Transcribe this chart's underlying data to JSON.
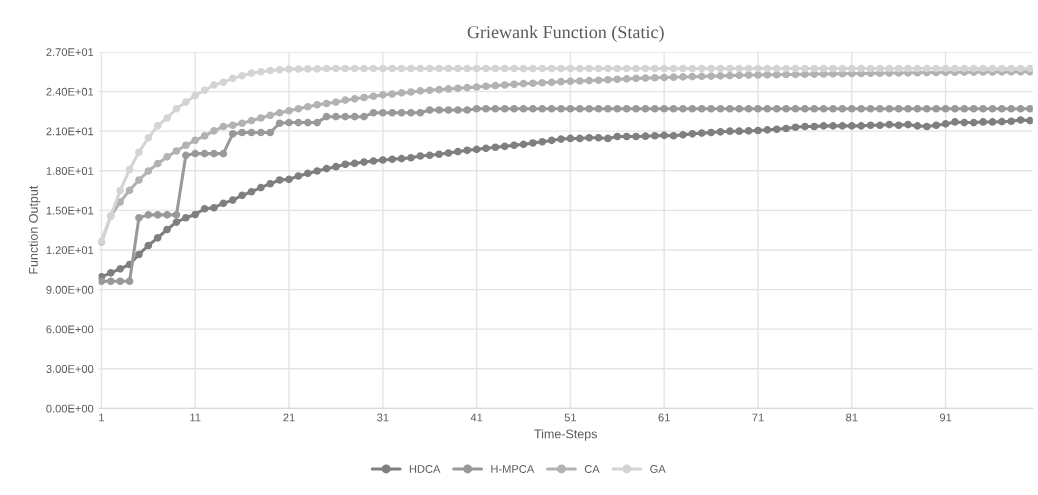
{
  "chart_data": {
    "type": "line",
    "title": "Griewank Function (Static)",
    "xlabel": "Time-Steps",
    "ylabel": "Function Output",
    "categories": [
      "1",
      null,
      null,
      null,
      null,
      null,
      null,
      null,
      null,
      null,
      "11",
      null,
      null,
      null,
      null,
      null,
      null,
      null,
      null,
      null,
      "21",
      null,
      null,
      null,
      null,
      null,
      null,
      null,
      null,
      null,
      "31",
      null,
      null,
      null,
      null,
      null,
      null,
      null,
      null,
      null,
      "41",
      null,
      null,
      null,
      null,
      null,
      null,
      null,
      null,
      null,
      "51",
      null,
      null,
      null,
      null,
      null,
      null,
      null,
      null,
      null,
      "61",
      null,
      null,
      null,
      null,
      null,
      null,
      null,
      null,
      null,
      "71",
      null,
      null,
      null,
      null,
      null,
      null,
      null,
      null,
      null,
      "81",
      null,
      null,
      null,
      null,
      null,
      null,
      null,
      null,
      null,
      "91",
      null,
      null,
      null,
      null,
      null,
      null,
      null,
      null,
      null
    ],
    "ylim": [
      0,
      27
    ],
    "yticks": [
      {
        "value": 0,
        "label": "0.00E+00"
      },
      {
        "value": 3,
        "label": "3.00E+00"
      },
      {
        "value": 6,
        "label": "6.00E+00"
      },
      {
        "value": 9,
        "label": "9.00E+00"
      },
      {
        "value": 12,
        "label": "1.20E+01"
      },
      {
        "value": 15,
        "label": "1.50E+01"
      },
      {
        "value": 18,
        "label": "1.80E+01"
      },
      {
        "value": 21,
        "label": "2.10E+01"
      },
      {
        "value": 24,
        "label": "2.40E+01"
      },
      {
        "value": 27,
        "label": "2.70E+01"
      }
    ],
    "grid": true,
    "legend": "bottom",
    "marker": "circle",
    "line_style": "solid",
    "series": [
      {
        "name": "HDCA",
        "color": "#7f7f7f",
        "values": [
          9.96,
          10.27,
          10.57,
          10.9,
          11.66,
          12.34,
          12.92,
          13.55,
          14.11,
          14.44,
          14.69,
          15.12,
          15.2,
          15.53,
          15.78,
          16.14,
          16.41,
          16.72,
          17.02,
          17.3,
          17.35,
          17.6,
          17.8,
          17.98,
          18.16,
          18.31,
          18.49,
          18.56,
          18.66,
          18.74,
          18.82,
          18.87,
          18.92,
          18.99,
          19.12,
          19.17,
          19.25,
          19.35,
          19.45,
          19.55,
          19.62,
          19.7,
          19.78,
          19.85,
          19.93,
          20.0,
          20.1,
          20.2,
          20.3,
          20.4,
          20.45,
          20.45,
          20.5,
          20.5,
          20.45,
          20.6,
          20.6,
          20.6,
          20.62,
          20.65,
          20.68,
          20.65,
          20.72,
          20.8,
          20.85,
          20.9,
          20.95,
          21.0,
          21.0,
          21.02,
          21.05,
          21.1,
          21.15,
          21.2,
          21.3,
          21.35,
          21.35,
          21.4,
          21.4,
          21.4,
          21.4,
          21.4,
          21.45,
          21.45,
          21.5,
          21.45,
          21.5,
          21.4,
          21.35,
          21.45,
          21.55,
          21.7,
          21.65,
          21.65,
          21.7,
          21.7,
          21.72,
          21.75,
          21.85,
          21.8
        ]
      },
      {
        "name": "H-MPCA",
        "color": "#999999",
        "values": [
          9.63,
          9.63,
          9.63,
          9.63,
          14.44,
          14.66,
          14.66,
          14.66,
          14.66,
          19.17,
          19.3,
          19.3,
          19.3,
          19.3,
          20.8,
          20.9,
          20.9,
          20.9,
          20.9,
          21.6,
          21.65,
          21.65,
          21.65,
          21.65,
          22.1,
          22.1,
          22.1,
          22.1,
          22.1,
          22.4,
          22.4,
          22.4,
          22.4,
          22.4,
          22.4,
          22.6,
          22.6,
          22.6,
          22.6,
          22.6,
          22.7,
          22.7,
          22.7,
          22.7,
          22.7,
          22.7,
          22.7,
          22.7,
          22.7,
          22.7,
          22.7,
          22.7,
          22.7,
          22.7,
          22.7,
          22.7,
          22.7,
          22.7,
          22.7,
          22.7,
          22.7,
          22.7,
          22.7,
          22.7,
          22.7,
          22.7,
          22.7,
          22.7,
          22.7,
          22.7,
          22.7,
          22.7,
          22.7,
          22.7,
          22.7,
          22.7,
          22.7,
          22.7,
          22.7,
          22.7,
          22.7,
          22.7,
          22.7,
          22.7,
          22.7,
          22.7,
          22.7,
          22.7,
          22.7,
          22.7,
          22.7,
          22.7,
          22.7,
          22.7,
          22.7,
          22.7,
          22.7,
          22.7,
          22.7,
          22.7
        ]
      },
      {
        "name": "CA",
        "color": "#b2b2b2",
        "values": [
          12.6,
          14.57,
          15.63,
          16.52,
          17.3,
          17.98,
          18.54,
          19.05,
          19.5,
          19.93,
          20.31,
          20.64,
          21.02,
          21.35,
          21.45,
          21.6,
          21.8,
          22.0,
          22.2,
          22.4,
          22.55,
          22.7,
          22.85,
          23.0,
          23.1,
          23.2,
          23.35,
          23.45,
          23.55,
          23.65,
          23.75,
          23.82,
          23.9,
          23.97,
          24.05,
          24.1,
          24.15,
          24.2,
          24.25,
          24.3,
          24.35,
          24.4,
          24.45,
          24.5,
          24.55,
          24.6,
          24.63,
          24.67,
          24.7,
          24.75,
          24.78,
          24.8,
          24.83,
          24.86,
          24.9,
          24.93,
          24.96,
          25.0,
          25.02,
          25.05,
          25.07,
          25.09,
          25.11,
          25.13,
          25.15,
          25.17,
          25.19,
          25.21,
          25.23,
          25.25,
          25.26,
          25.27,
          25.28,
          25.29,
          25.3,
          25.31,
          25.32,
          25.33,
          25.34,
          25.35,
          25.36,
          25.37,
          25.38,
          25.39,
          25.4,
          25.41,
          25.42,
          25.43,
          25.44,
          25.45,
          25.46,
          25.46,
          25.47,
          25.47,
          25.48,
          25.48,
          25.49,
          25.49,
          25.5,
          25.5
        ]
      },
      {
        "name": "GA",
        "color": "#d4d4d4",
        "values": [
          12.67,
          14.57,
          16.5,
          18.1,
          19.4,
          20.5,
          21.4,
          22.0,
          22.7,
          23.2,
          23.7,
          24.1,
          24.5,
          24.7,
          25.0,
          25.2,
          25.4,
          25.5,
          25.6,
          25.65,
          25.7,
          25.7,
          25.72,
          25.72,
          25.75,
          25.75,
          25.75,
          25.75,
          25.75,
          25.75,
          25.75,
          25.75,
          25.75,
          25.75,
          25.75,
          25.75,
          25.75,
          25.75,
          25.75,
          25.75,
          25.75,
          25.75,
          25.75,
          25.75,
          25.75,
          25.75,
          25.75,
          25.75,
          25.75,
          25.75,
          25.75,
          25.75,
          25.75,
          25.75,
          25.75,
          25.75,
          25.75,
          25.75,
          25.75,
          25.75,
          25.75,
          25.75,
          25.75,
          25.75,
          25.75,
          25.75,
          25.75,
          25.75,
          25.75,
          25.75,
          25.75,
          25.75,
          25.75,
          25.75,
          25.75,
          25.75,
          25.75,
          25.75,
          25.75,
          25.75,
          25.75,
          25.75,
          25.75,
          25.75,
          25.75,
          25.75,
          25.75,
          25.75,
          25.75,
          25.75,
          25.75,
          25.75,
          25.75,
          25.75,
          25.75,
          25.75,
          25.75,
          25.75,
          25.75,
          25.75
        ]
      }
    ]
  }
}
